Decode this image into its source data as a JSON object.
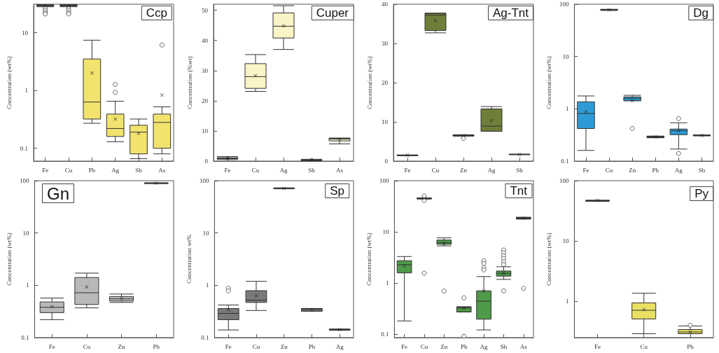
{
  "chart_data": [
    {
      "type": "box",
      "title": "Ccp",
      "ylabel": "Concentration (wt%)",
      "log": true,
      "color": "#f2e36e",
      "ylim": [
        0.06,
        31
      ],
      "yticks": [
        0.1,
        1,
        10
      ],
      "categories": [
        "Fe",
        "Cu",
        "Pb",
        "Ag",
        "Sb",
        "As"
      ],
      "boxes": [
        {
          "low": 28,
          "q1": 29,
          "median": 29.5,
          "q3": 30,
          "high": 30.5,
          "mean": 29,
          "outliers": [
            26,
            24,
            22,
            21
          ]
        },
        {
          "low": 28,
          "q1": 29,
          "median": 29.5,
          "q3": 30,
          "high": 30.5,
          "mean": 29,
          "outliers": [
            26,
            24,
            22,
            21
          ]
        },
        {
          "low": 0.27,
          "q1": 0.32,
          "median": 0.63,
          "q3": 3.5,
          "high": 7.4,
          "mean": 2.0
        },
        {
          "low": 0.13,
          "q1": 0.16,
          "median": 0.22,
          "q3": 0.39,
          "high": 0.65,
          "mean": 0.32,
          "outliers": [
            1.27,
            0.93
          ]
        },
        {
          "low": 0.066,
          "q1": 0.08,
          "median": 0.19,
          "q3": 0.25,
          "high": 0.32,
          "mean": 0.18
        },
        {
          "low": 0.08,
          "q1": 0.1,
          "median": 0.28,
          "q3": 0.39,
          "high": 0.52,
          "mean": 0.83,
          "outliers": [
            6.1
          ]
        }
      ]
    },
    {
      "type": "box",
      "title": "Cuper",
      "ylabel": "Concentration (%wt)",
      "color": "#faf4c6",
      "ylim": [
        0,
        52
      ],
      "yticks": [
        0,
        10,
        20,
        30,
        40,
        50
      ],
      "categories": [
        "Fe",
        "Cu",
        "Ag",
        "Sb",
        "As"
      ],
      "boxes": [
        {
          "low": 0.5,
          "q1": 0.8,
          "median": 1,
          "q3": 1.1,
          "high": 1.5,
          "mean": 0.9
        },
        {
          "low": 23.1,
          "q1": 24.1,
          "median": 28,
          "q3": 32.3,
          "high": 35.3,
          "mean": 28.3
        },
        {
          "low": 37,
          "q1": 40.8,
          "median": 44.7,
          "q3": 49.1,
          "high": 51.5,
          "mean": 44.8
        },
        {
          "low": 0.1,
          "q1": 0.2,
          "median": 0.3,
          "q3": 0.4,
          "high": 0.6,
          "mean": 0.3
        },
        {
          "low": 5.7,
          "q1": 6.7,
          "median": 7.3,
          "q3": 7.6,
          "high": 7.6,
          "mean": 7.2
        }
      ]
    },
    {
      "type": "box",
      "title": "Ag-Tnt",
      "ylabel": "Concentration (wt%)",
      "color": "#6e7f3a",
      "ylim": [
        0,
        40
      ],
      "yticks": [
        0,
        10,
        20,
        30,
        40
      ],
      "categories": [
        "Fe",
        "Cu",
        "Zn",
        "Ag",
        "Sb"
      ],
      "boxes": [
        {
          "low": 1.4,
          "q1": 1.4,
          "median": 1.5,
          "q3": 1.55,
          "high": 1.55,
          "mean": 1.5
        },
        {
          "low": 32.7,
          "q1": 33.3,
          "median": 37.2,
          "q3": 37.7,
          "high": 37.7,
          "mean": 35.8
        },
        {
          "low": 6.4,
          "q1": 6.4,
          "median": 6.5,
          "q3": 6.7,
          "high": 6.7,
          "mean": 6.5,
          "outliers": [
            5.8
          ]
        },
        {
          "low": 7.6,
          "q1": 7.6,
          "median": 8.9,
          "q3": 13.3,
          "high": 13.9,
          "mean": 10.3
        },
        {
          "low": 1.65,
          "q1": 1.65,
          "median": 1.7,
          "q3": 1.75,
          "high": 1.75,
          "mean": 1.7
        }
      ]
    },
    {
      "type": "box",
      "title": "Dg",
      "ylabel": "Concentration (wt%)",
      "log": true,
      "color": "#2e9bd6",
      "ylim": [
        0.1,
        100
      ],
      "yticks": [
        0.1,
        1,
        10,
        100
      ],
      "categories": [
        "Fe",
        "Cu",
        "Zn",
        "Pb",
        "Ag",
        "Sb"
      ],
      "boxes": [
        {
          "low": 0.16,
          "q1": 0.42,
          "median": 0.81,
          "q3": 1.36,
          "high": 1.76,
          "mean": 0.88
        },
        {
          "low": 76,
          "q1": 77,
          "median": 78,
          "q3": 79,
          "high": 80,
          "mean": 78
        },
        {
          "low": 1.43,
          "q1": 1.43,
          "median": 1.59,
          "q3": 1.69,
          "high": 1.81,
          "mean": 1.43,
          "outliers": [
            0.42
          ]
        },
        {
          "low": 0.28,
          "q1": 0.28,
          "median": 0.29,
          "q3": 0.3,
          "high": 0.3,
          "mean": 0.29
        },
        {
          "low": 0.17,
          "q1": 0.32,
          "median": 0.38,
          "q3": 0.41,
          "high": 0.54,
          "mean": 0.38,
          "outliers": [
            0.65,
            0.14
          ]
        },
        {
          "low": 0.305,
          "q1": 0.305,
          "median": 0.31,
          "q3": 0.315,
          "high": 0.315,
          "mean": 0.31
        }
      ]
    },
    {
      "type": "box",
      "title": "Gn",
      "ylabel": "Concentration (wt%)",
      "log": true,
      "color": "#b9b9b9",
      "ylim": [
        0.1,
        100
      ],
      "yticks": [
        0.1,
        1,
        10,
        100
      ],
      "categories": [
        "Fe",
        "Cu",
        "Zn",
        "Pb"
      ],
      "boxes": [
        {
          "low": 0.22,
          "q1": 0.3,
          "median": 0.38,
          "q3": 0.48,
          "high": 0.57,
          "mean": 0.39
        },
        {
          "low": 0.37,
          "q1": 0.43,
          "median": 0.72,
          "q3": 1.41,
          "high": 1.71,
          "mean": 0.93
        },
        {
          "low": 0.47,
          "q1": 0.5,
          "median": 0.55,
          "q3": 0.61,
          "high": 0.68,
          "mean": 0.56
        },
        {
          "low": 88,
          "q1": 89,
          "median": 90,
          "q3": 90.5,
          "high": 91,
          "mean": 90
        }
      ]
    },
    {
      "type": "box",
      "title": "Sp",
      "ylabel": "Concentration wt%",
      "log": true,
      "color": "#7a7a7a",
      "ylim": [
        0.1,
        100
      ],
      "yticks": [
        0.1,
        1,
        10,
        100
      ],
      "categories": [
        "Fe",
        "Cu",
        "Zn",
        "Pb",
        "Ag"
      ],
      "boxes": [
        {
          "low": 0.14,
          "q1": 0.22,
          "median": 0.29,
          "q3": 0.36,
          "high": 0.42,
          "mean": 0.34,
          "outliers": [
            0.88,
            0.78
          ]
        },
        {
          "low": 0.33,
          "q1": 0.47,
          "median": 0.52,
          "q3": 0.79,
          "high": 1.19,
          "mean": 0.63
        },
        {
          "low": 70,
          "q1": 71,
          "median": 71.5,
          "q3": 72,
          "high": 73,
          "mean": 71.5
        },
        {
          "low": 0.32,
          "q1": 0.32,
          "median": 0.35,
          "q3": 0.36,
          "high": 0.36,
          "mean": 0.34
        },
        {
          "low": 0.139,
          "q1": 0.139,
          "median": 0.142,
          "q3": 0.145,
          "high": 0.145,
          "mean": 0.142
        }
      ]
    },
    {
      "type": "box",
      "title": "Tnt",
      "ylabel": "Concentration (wt%)",
      "log": true,
      "color": "#4f9a4b",
      "ylim": [
        0.085,
        100
      ],
      "yticks": [
        0.1,
        1,
        10,
        100
      ],
      "categories": [
        "Fe",
        "Cu",
        "Zn",
        "Pb",
        "Ag",
        "Sb",
        "As"
      ],
      "boxes": [
        {
          "low": 0.18,
          "q1": 1.57,
          "median": 2.27,
          "q3": 2.72,
          "high": 3.28,
          "mean": 2.15
        },
        {
          "low": 44,
          "q1": 44,
          "median": 45,
          "q3": 46,
          "high": 46,
          "mean": 45,
          "outliers": [
            50,
            41,
            1.55
          ]
        },
        {
          "low": 5.3,
          "q1": 5.7,
          "median": 6.1,
          "q3": 6.9,
          "high": 7.6,
          "mean": 6.0,
          "outliers": [
            0.69
          ]
        },
        {
          "low": 0.27,
          "q1": 0.27,
          "median": 0.32,
          "q3": 0.34,
          "high": 0.34,
          "mean": 0.32,
          "outliers": [
            0.51,
            0.09
          ]
        },
        {
          "low": 0.12,
          "q1": 0.195,
          "median": 0.44,
          "q3": 0.7,
          "high": 1.33,
          "mean": 0.69,
          "outliers": [
            2.7,
            2.4,
            2.0,
            1.8
          ]
        },
        {
          "low": 1.17,
          "q1": 1.36,
          "median": 1.54,
          "q3": 1.71,
          "high": 2.07,
          "mean": 1.55,
          "outliers": [
            4.4,
            3.9,
            3.4,
            3.0,
            2.6,
            2.3,
            0.7
          ]
        },
        {
          "low": 17.8,
          "q1": 17.8,
          "median": 18.5,
          "q3": 19.2,
          "high": 19.2,
          "mean": 18.5,
          "outliers": [
            0.78
          ]
        }
      ]
    },
    {
      "type": "box",
      "title": "Py",
      "ylabel": "Concentration (wt%)",
      "log": true,
      "color": "#e9e063",
      "ylim": [
        0.25,
        100
      ],
      "yticks": [
        1,
        10,
        100
      ],
      "categories": [
        "Fe",
        "Cu",
        "Pb"
      ],
      "boxes": [
        {
          "low": 45.5,
          "q1": 46,
          "median": 46.5,
          "q3": 47,
          "high": 47.5,
          "mean": 47
        },
        {
          "low": 0.29,
          "q1": 0.51,
          "median": 0.71,
          "q3": 0.94,
          "high": 1.36,
          "mean": 0.73
        },
        {
          "low": 0.29,
          "q1": 0.29,
          "median": 0.31,
          "q3": 0.34,
          "high": 0.39,
          "mean": 0.31,
          "outliers": [
            0.4
          ]
        }
      ]
    }
  ]
}
